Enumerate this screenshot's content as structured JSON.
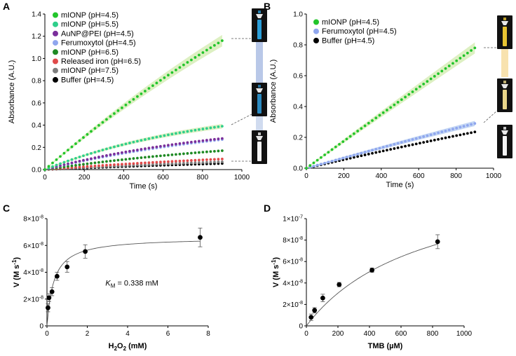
{
  "colors": {
    "green_bright": "#22c52b",
    "green_teal": "#2fcf8b",
    "purple": "#7b2f9b",
    "light_blue": "#8fa6ee",
    "dark_green": "#1f8a24",
    "red": "#e04a4a",
    "gray": "#7d7d7d",
    "black": "#000000",
    "band_green": "#cfe9a8",
    "band_blue": "#a9c4f0"
  },
  "chart_data": [
    {
      "panel": "A",
      "type": "scatter",
      "xlabel": "Time (s)",
      "ylabel": "Absorbance (A.U.)",
      "xlim": [
        0,
        1000
      ],
      "ylim": [
        0,
        1.4
      ],
      "xticks": [
        "0",
        "200",
        "400",
        "600",
        "800",
        "1000"
      ],
      "yticks": [
        "0.0",
        "0.2",
        "0.4",
        "0.6",
        "0.8",
        "1.0",
        "1.2",
        "1.4"
      ],
      "series": [
        {
          "name": "mIONP (pH=4.5)",
          "color": "#22c52b",
          "final": 1.16,
          "curve": 0.18,
          "band": true
        },
        {
          "name": "mIONP (pH=5.5)",
          "color": "#2fcf8b",
          "final": 0.39,
          "curve": 0.55,
          "band": true
        },
        {
          "name": "AuNP@PEI (pH=4.5)",
          "color": "#7b2f9b",
          "final": 0.28,
          "curve": 0.45,
          "band": false
        },
        {
          "name": "Ferumoxytol (pH=4.5)",
          "color": "#8fa6ee",
          "final": 0.27,
          "curve": 0.4,
          "band": false
        },
        {
          "name": "mIONP (pH=6.5)",
          "color": "#1f8a24",
          "final": 0.17,
          "curve": 0.35,
          "band": false
        },
        {
          "name": "Released iron (pH=6.5)",
          "color": "#e04a4a",
          "final": 0.095,
          "curve": 0.3,
          "band": false
        },
        {
          "name": "mIONP (pH=7.5)",
          "color": "#7d7d7d",
          "final": 0.07,
          "curve": 0.25,
          "band": false
        },
        {
          "name": "Buffer (pH=4.5)",
          "color": "#000000",
          "final": 0.055,
          "curve": 0.2,
          "band": false
        }
      ]
    },
    {
      "panel": "B",
      "type": "scatter",
      "xlabel": "Time (s)",
      "ylabel": "Absorbance (A.U.)",
      "xlim": [
        0,
        1000
      ],
      "ylim": [
        0,
        1.0
      ],
      "xticks": [
        "0",
        "200",
        "400",
        "600",
        "800",
        "1000"
      ],
      "yticks": [
        "0.0",
        "0.2",
        "0.4",
        "0.6",
        "0.8",
        "1.0"
      ],
      "series": [
        {
          "name": "mIONP (pH=4.5)",
          "color": "#22c52b",
          "final": 0.78,
          "curve": 0.02,
          "band": true
        },
        {
          "name": "Ferumoxytol (pH=4.5)",
          "color": "#8fa6ee",
          "final": 0.29,
          "curve": 0.05,
          "band": true
        },
        {
          "name": "Buffer (pH=4.5)",
          "color": "#000000",
          "final": 0.235,
          "curve": 0.08,
          "band": false
        }
      ]
    },
    {
      "panel": "C",
      "type": "scatter",
      "xlabel": "H2O2 (mM)",
      "ylabel": "V (M s-1)",
      "xlim": [
        0,
        8
      ],
      "ylim": [
        0,
        8e-08
      ],
      "xticks": [
        "0",
        "2",
        "4",
        "6",
        "8"
      ],
      "yticks": [
        "0",
        "2×10-8",
        "4×10-8",
        "6×10-8",
        "8×10-8"
      ],
      "annotation": "KM = 0.338 mM",
      "fit": {
        "model": "michaelis-menten",
        "vmax": 6.6e-08,
        "km": 0.338
      },
      "points": [
        {
          "x": 0.05,
          "y": 1.35e-08,
          "err": 3e-09
        },
        {
          "x": 0.1,
          "y": 2.1e-08,
          "err": 3e-09
        },
        {
          "x": 0.25,
          "y": 2.55e-08,
          "err": 3e-09
        },
        {
          "x": 0.5,
          "y": 3.7e-08,
          "err": 3e-09
        },
        {
          "x": 1.0,
          "y": 4.4e-08,
          "err": 4e-09
        },
        {
          "x": 1.9,
          "y": 5.55e-08,
          "err": 5e-09
        },
        {
          "x": 7.6,
          "y": 6.6e-08,
          "err": 7e-09
        }
      ]
    },
    {
      "panel": "D",
      "type": "scatter",
      "xlabel": "TMB (µM)",
      "ylabel": "V (M s-1)",
      "xlim": [
        0,
        1000
      ],
      "ylim": [
        0,
        1e-07
      ],
      "xticks": [
        "0",
        "200",
        "400",
        "600",
        "800",
        "1000"
      ],
      "yticks": [
        "0",
        "2×10-8",
        "4×10-8",
        "6×10-8",
        "8×10-8",
        "1×10-7"
      ],
      "fit": {
        "model": "michaelis-menten",
        "vmax": 1.45e-07,
        "km": 750
      },
      "points": [
        {
          "x": 30,
          "y": 8e-09,
          "err": 3e-09
        },
        {
          "x": 52,
          "y": 1.45e-08,
          "err": 2.5e-09
        },
        {
          "x": 104,
          "y": 2.6e-08,
          "err": 3.5e-09
        },
        {
          "x": 208,
          "y": 3.85e-08,
          "err": 2e-09
        },
        {
          "x": 416,
          "y": 5.2e-08,
          "err": 2e-09
        },
        {
          "x": 832,
          "y": 7.85e-08,
          "err": 6.5e-09
        }
      ]
    }
  ],
  "panel_labels": [
    "A",
    "B",
    "C",
    "D"
  ],
  "legend_a": [
    "mIONP (pH=4.5)",
    "mIONP (pH=5.5)",
    "AuNP@PEI (pH=4.5)",
    "Ferumoxytol (pH=4.5)",
    "mIONP (pH=6.5)",
    "Released iron (pH=6.5)",
    "mIONP (pH=7.5)",
    "Buffer (pH=4.5)"
  ],
  "legend_b": [
    "mIONP (pH=4.5)",
    "Ferumoxytol (pH=4.5)",
    "Buffer (pH=4.5)"
  ],
  "cuvette_a": [
    "cuvette-blue-high",
    "cuvette-blue-low",
    "cuvette-control"
  ],
  "cuvette_b": [
    "cuvette-yellow-high",
    "cuvette-yellow-low",
    "cuvette-control"
  ]
}
